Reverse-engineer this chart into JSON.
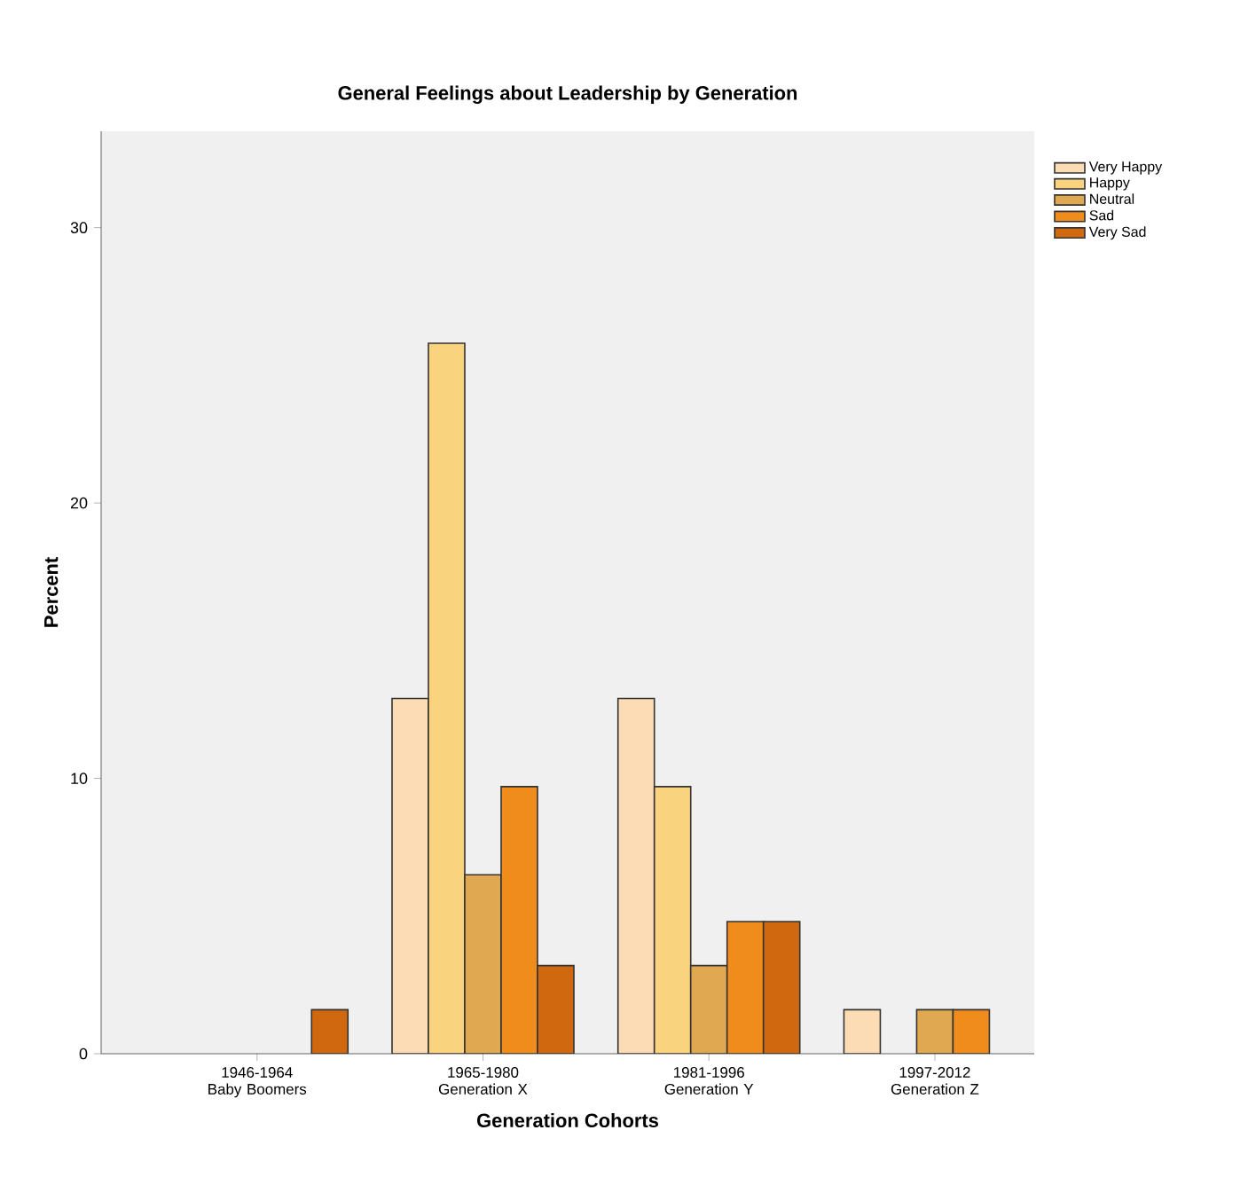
{
  "chart_data": {
    "type": "bar",
    "title": "General Feelings about Leadership by Generation",
    "xlabel": "Generation Cohorts",
    "ylabel": "Percent",
    "categories": [
      "1946-1964 Baby Boomers",
      "1965-1980 Generation X",
      "1981-1996 Generation Y",
      "1997-2012 Generation Z"
    ],
    "series": [
      {
        "name": "Very Happy",
        "color": "#fbdcb4",
        "values": [
          null,
          12.9,
          12.9,
          1.6
        ]
      },
      {
        "name": "Happy",
        "color": "#f9d37e",
        "values": [
          null,
          25.8,
          9.7,
          null
        ]
      },
      {
        "name": "Neutral",
        "color": "#e0a850",
        "values": [
          null,
          6.5,
          3.2,
          1.6
        ]
      },
      {
        "name": "Sad",
        "color": "#f08c1c",
        "values": [
          null,
          9.7,
          4.8,
          1.6
        ]
      },
      {
        "name": "Very Sad",
        "color": "#d0680f",
        "values": [
          1.6,
          3.2,
          4.8,
          null
        ]
      }
    ],
    "ylim": [
      0,
      33.5
    ],
    "yticks": [
      0,
      10,
      20,
      30
    ],
    "legend": "top right",
    "grid": false
  }
}
